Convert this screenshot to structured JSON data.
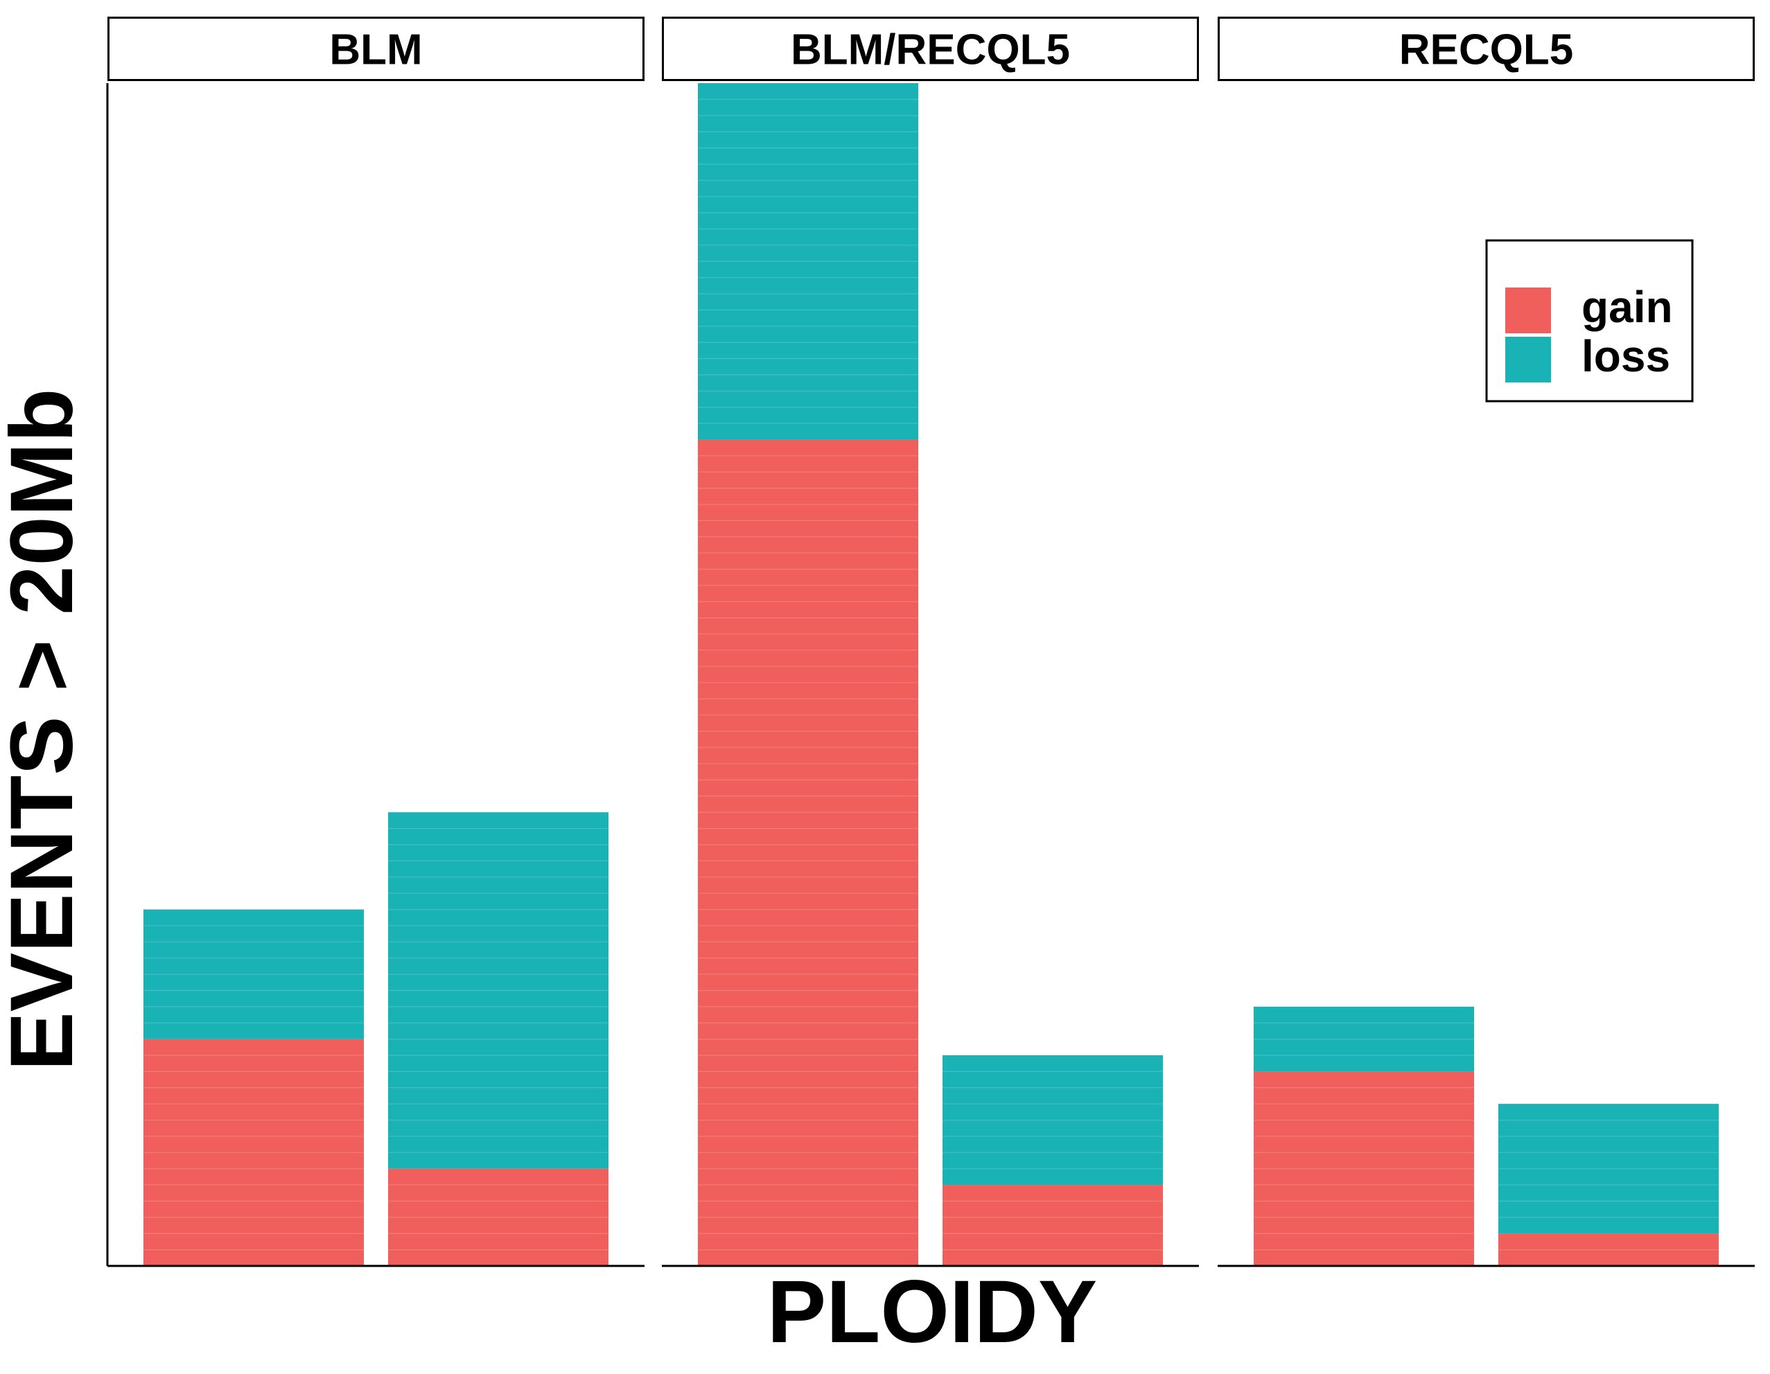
{
  "chart_data": {
    "type": "bar",
    "stacked": true,
    "xlabel": "PLOIDY",
    "ylabel": "EVENTS > 20Mb",
    "ylim": [
      0,
      73
    ],
    "y_ticks_shown": false,
    "x_ticks_shown": false,
    "grid": false,
    "legend_position": "top-right",
    "series_colors": {
      "gain": "#F15F5C",
      "loss": "#19B3B6"
    },
    "legend": [
      {
        "label": "gain",
        "color": "#F15F5C"
      },
      {
        "label": "loss",
        "color": "#19B3B6"
      }
    ],
    "panels": [
      {
        "title": "BLM",
        "bars": [
          {
            "gain": 14,
            "loss": 8
          },
          {
            "gain": 6,
            "loss": 22
          }
        ]
      },
      {
        "title": "BLM/RECQL5",
        "bars": [
          {
            "gain": 51,
            "loss": 22
          },
          {
            "gain": 5,
            "loss": 8
          }
        ]
      },
      {
        "title": "RECQL5",
        "bars": [
          {
            "gain": 12,
            "loss": 4
          },
          {
            "gain": 2,
            "loss": 8
          }
        ]
      }
    ]
  }
}
